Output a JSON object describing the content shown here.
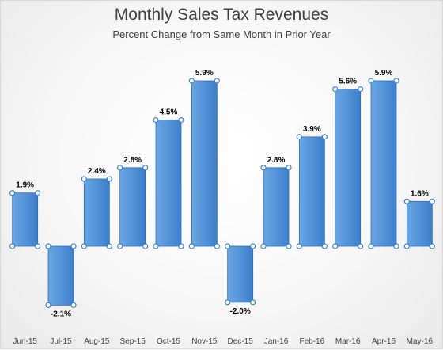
{
  "chart_data": {
    "type": "bar",
    "title": "Monthly Sales Tax Revenues",
    "subtitle": "Percent Change from Same Month in Prior Year",
    "categories": [
      "Jun-15",
      "Jul-15",
      "Aug-15",
      "Sep-15",
      "Oct-15",
      "Nov-15",
      "Dec-15",
      "Jan-16",
      "Feb-16",
      "Mar-16",
      "Apr-16",
      "May-16"
    ],
    "values": [
      1.9,
      -2.1,
      2.4,
      2.8,
      4.5,
      5.9,
      -2.0,
      2.8,
      3.9,
      5.6,
      5.9,
      1.6
    ],
    "data_labels": [
      "1.9%",
      "-2.1%",
      "2.4%",
      "2.8%",
      "4.5%",
      "5.9%",
      "-2.0%",
      "2.8%",
      "3.9%",
      "5.6%",
      "5.9%",
      "1.6%"
    ],
    "xlabel": "",
    "ylabel": "",
    "ylim": [
      -2.1,
      5.9
    ],
    "grid": false,
    "legend": "none",
    "colors": {
      "bar_top": "#6aa6e3",
      "bar_bottom": "#3d7fcc",
      "bar_edge": "#2f6fb8",
      "handle": "#3d84d6"
    }
  }
}
